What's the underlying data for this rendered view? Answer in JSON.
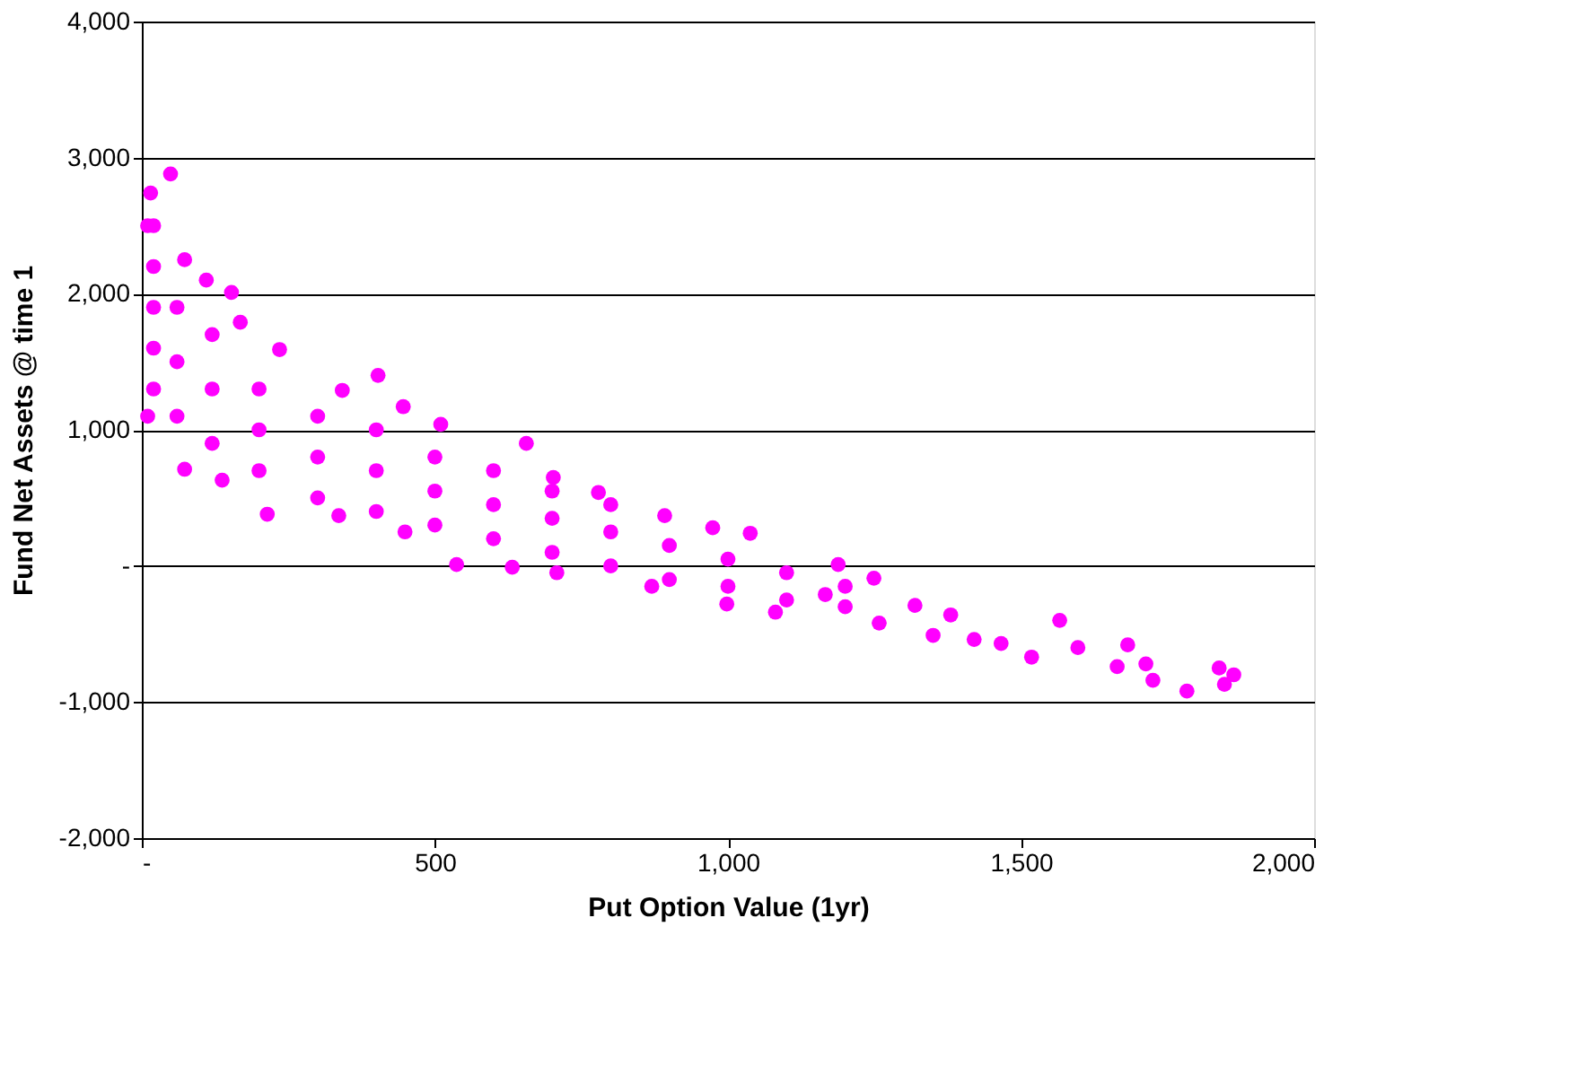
{
  "chart_data": {
    "type": "scatter",
    "xlabel": "Put Option Value (1yr)",
    "ylabel": "Fund Net Assets @ time 1",
    "xlim": [
      0,
      2000
    ],
    "xticks": [
      {
        "value": 0,
        "label": "-"
      },
      500,
      {
        "value": 1000,
        "label": "1,000"
      },
      {
        "value": 1500,
        "label": "1,500"
      },
      {
        "value": 2000,
        "label": "2,000"
      }
    ],
    "ylim": [
      -2000,
      4000
    ],
    "yticks": [
      {
        "value": -2000,
        "label": "-2,000"
      },
      {
        "value": -1000,
        "label": "-1,000"
      },
      {
        "value": 0,
        "label": "-"
      },
      {
        "value": 1000,
        "label": "1,000"
      },
      {
        "value": 2000,
        "label": "2,000"
      },
      {
        "value": 3000,
        "label": "3,000"
      },
      {
        "value": 4000,
        "label": "4,000"
      }
    ],
    "grid": "y",
    "marker": "circle",
    "legend": false,
    "series": [
      {
        "color": "#ff00ff",
        "x": [
          49,
          15,
          10,
          73,
          110,
          153,
          168,
          235,
          403,
          342,
          446,
          510,
          656,
          702,
          779,
          892,
          1038,
          10,
          73,
          137,
          214,
          336,
          449,
          537,
          632,
          708,
          870,
          998,
          1081,
          1258,
          1166,
          974,
          1188,
          1319,
          1566,
          1597,
          1682,
          1664,
          1713,
          1725,
          1783,
          1838,
          1863,
          1847,
          1518,
          1466,
          1420,
          1380,
          1350,
          1249,
          20,
          20,
          20,
          20,
          20,
          60,
          60,
          60,
          120,
          120,
          120,
          200,
          200,
          200,
          300,
          300,
          300,
          400,
          400,
          400,
          500,
          500,
          500,
          600,
          600,
          600,
          700,
          700,
          700,
          800,
          800,
          800,
          900,
          900,
          1000,
          1000,
          1100,
          1100,
          1200,
          1200
        ],
        "values": [
          2880,
          2740,
          2500,
          2250,
          2100,
          2010,
          1790,
          1590,
          1400,
          1290,
          1170,
          1040,
          900,
          650,
          540,
          370,
          240,
          1100,
          710,
          630,
          380,
          370,
          250,
          10,
          -10,
          -50,
          -150,
          -280,
          -340,
          -420,
          -210,
          280,
          10,
          -290,
          -400,
          -600,
          -580,
          -740,
          -720,
          -840,
          -920,
          -750,
          -800,
          -870,
          -670,
          -570,
          -540,
          -360,
          -510,
          -90,
          1300,
          1600,
          1900,
          2200,
          2500,
          1100,
          1500,
          1900,
          900,
          1300,
          1700,
          700,
          1000,
          1300,
          500,
          800,
          1100,
          400,
          700,
          1000,
          300,
          550,
          800,
          200,
          450,
          700,
          100,
          350,
          550,
          0,
          250,
          450,
          -100,
          150,
          -150,
          50,
          -250,
          -50,
          -300,
          -150
        ]
      }
    ]
  }
}
